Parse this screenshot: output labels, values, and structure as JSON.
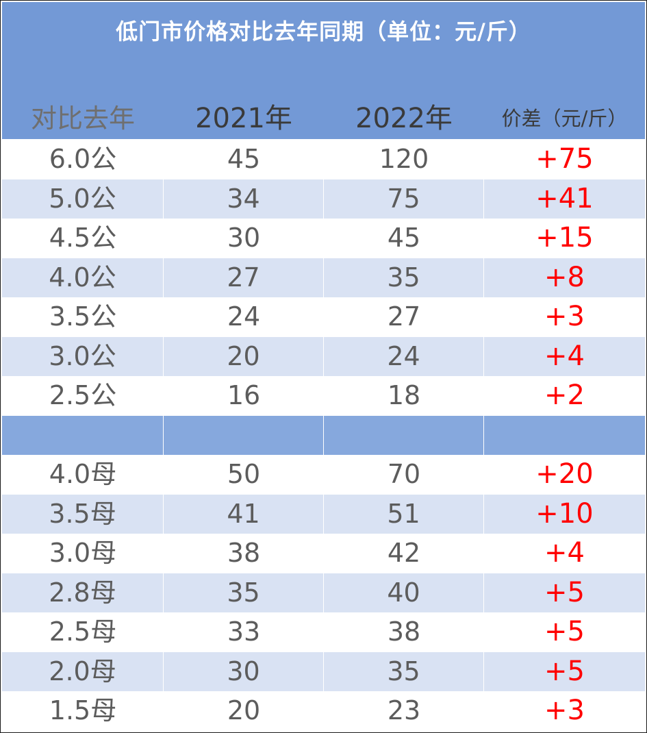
{
  "table": {
    "title": "低门市价格对比去年同期（单位：元/斤）",
    "headers": [
      "对比去年",
      "2021年",
      "2022年",
      "价差（元/斤）"
    ],
    "rows": [
      [
        "6.0公",
        "45",
        "120",
        "+75"
      ],
      [
        "5.0公",
        "34",
        "75",
        "+41"
      ],
      [
        "4.5公",
        "30",
        "45",
        "+15"
      ],
      [
        "4.0公",
        "27",
        "35",
        "+8"
      ],
      [
        "3.5公",
        "24",
        "27",
        "+3"
      ],
      [
        "3.0公",
        "20",
        "24",
        "+4"
      ],
      [
        "2.5公",
        "16",
        "18",
        "+2"
      ],
      [
        "",
        "",
        "",
        ""
      ],
      [
        "4.0母",
        "50",
        "70",
        "+20"
      ],
      [
        "3.5母",
        "41",
        "51",
        "+10"
      ],
      [
        "3.0母",
        "38",
        "42",
        "+4"
      ],
      [
        "2.8母",
        "35",
        "40",
        "+5"
      ],
      [
        "2.5母",
        "33",
        "38",
        "+5"
      ],
      [
        "2.0母",
        "30",
        "35",
        "+5"
      ],
      [
        "1.5母",
        "20",
        "23",
        "+3"
      ]
    ],
    "colors": {
      "header_bg": "#7399d6",
      "stripe_bg": "#d9e2f3",
      "separator_bg": "#86a8dd",
      "diff_text": "#ff0000",
      "body_text": "#5c5c5c"
    }
  }
}
